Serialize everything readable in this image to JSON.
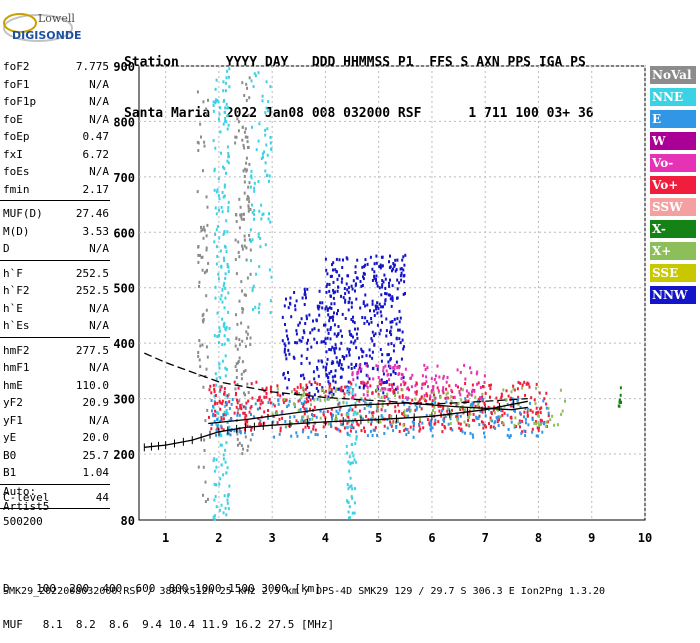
{
  "logo": {
    "brand": "Lowell",
    "product": "DIGISONDE"
  },
  "header": {
    "line1": "Station      YYYY DAY   DDD HHMMSS P1  FFS S AXN PPS IGA PS",
    "line2": "Santa Maria  2022 Jan08 008 032000 RSF      1 711 100 03+ 36"
  },
  "params": [
    {
      "group": 1,
      "items": [
        {
          "name": "foF2",
          "value": "7.775"
        },
        {
          "name": "foF1",
          "value": "N/A"
        },
        {
          "name": "foF1p",
          "value": "N/A"
        },
        {
          "name": "foE",
          "value": "N/A"
        },
        {
          "name": "foEp",
          "value": "0.47"
        },
        {
          "name": "fxI",
          "value": "6.72"
        },
        {
          "name": "foEs",
          "value": "N/A"
        },
        {
          "name": "fmin",
          "value": "2.17"
        }
      ]
    },
    {
      "group": 2,
      "items": [
        {
          "name": "MUF(D)",
          "value": "27.46"
        },
        {
          "name": "M(D)",
          "value": "3.53"
        },
        {
          "name": "D",
          "value": "N/A"
        }
      ]
    },
    {
      "group": 3,
      "items": [
        {
          "name": "h`F",
          "value": "252.5"
        },
        {
          "name": "h`F2",
          "value": "252.5"
        },
        {
          "name": "h`E",
          "value": "N/A"
        },
        {
          "name": "h`Es",
          "value": "N/A"
        }
      ]
    },
    {
      "group": 4,
      "items": [
        {
          "name": "hmF2",
          "value": "277.5"
        },
        {
          "name": "hmF1",
          "value": "N/A"
        },
        {
          "name": "hmE",
          "value": "110.0"
        },
        {
          "name": "yF2",
          "value": "20.9"
        },
        {
          "name": "yF1",
          "value": "N/A"
        },
        {
          "name": "yE",
          "value": "20.0"
        },
        {
          "name": "B0",
          "value": "25.7"
        },
        {
          "name": "B1",
          "value": "1.04"
        }
      ]
    },
    {
      "group": 5,
      "items": [
        {
          "name": "C-level",
          "value": "44"
        }
      ]
    }
  ],
  "auto": {
    "line1": "Auto:",
    "line2": "Artist5",
    "line3": "500200"
  },
  "legend": [
    {
      "label": "NoVal",
      "color": "#8c8c8c"
    },
    {
      "label": "NNE",
      "color": "#3cd2e6"
    },
    {
      "label": "E",
      "color": "#3296e6"
    },
    {
      "label": "W",
      "color": "#aa0096"
    },
    {
      "label": "Vo-",
      "color": "#e632b4"
    },
    {
      "label": "Vo+",
      "color": "#f01e3c"
    },
    {
      "label": "SSW",
      "color": "#f5a0a0"
    },
    {
      "label": "X-",
      "color": "#148214"
    },
    {
      "label": "X+",
      "color": "#8cbe5a"
    },
    {
      "label": "SSE",
      "color": "#c8c800"
    },
    {
      "label": "NNW",
      "color": "#1414c8"
    }
  ],
  "footer": {
    "d_line": "D    100  200  400  600  800 1000 1500 3000 [km]",
    "muf_line": "MUF   8.1  8.2  8.6  9.4 10.4 11.9 16.2 27.5 [MHz]",
    "file_line": "SMK29_2022008032000.RSF / 380fx512h 25 kHz 2.5 km / DPS-4D SMK29 129 / 29.7 S 306.3 E Ion2Png 1.3.20"
  },
  "chart_data": {
    "type": "scatter",
    "title": "",
    "xlabel": "",
    "ylabel": "",
    "x_ticks": [
      "1",
      "2",
      "3",
      "4",
      "5",
      "6",
      "7",
      "8",
      "9",
      "10"
    ],
    "y_ticks": [
      "80",
      "200",
      "300",
      "400",
      "500",
      "600",
      "700",
      "800",
      "900"
    ],
    "xlim": [
      0.5,
      10
    ],
    "ylim": [
      80,
      900
    ],
    "grid": true,
    "legend_position": "right",
    "clusters": [
      {
        "source": "NNE",
        "x": [
          1.9,
          2.2
        ],
        "y": [
          80,
          900
        ],
        "density": 220
      },
      {
        "source": "NoVal",
        "x": [
          2.3,
          2.6
        ],
        "y": [
          200,
          880
        ],
        "density": 140
      },
      {
        "source": "NNE",
        "x": [
          2.6,
          3.0
        ],
        "y": [
          450,
          900
        ],
        "density": 80
      },
      {
        "source": "NNW",
        "x": [
          3.2,
          4.2
        ],
        "y": [
          300,
          500
        ],
        "density": 150
      },
      {
        "source": "NNW",
        "x": [
          4.0,
          5.5
        ],
        "y": [
          310,
          560
        ],
        "density": 380
      },
      {
        "source": "Vo+",
        "x": [
          1.8,
          8.2
        ],
        "y": [
          240,
          330
        ],
        "density": 520
      },
      {
        "source": "E",
        "x": [
          1.8,
          8.2
        ],
        "y": [
          230,
          300
        ],
        "density": 260
      },
      {
        "source": "X+",
        "x": [
          3.0,
          8.5
        ],
        "y": [
          250,
          320
        ],
        "density": 160
      },
      {
        "source": "Vo-",
        "x": [
          4.5,
          7.0
        ],
        "y": [
          300,
          360
        ],
        "density": 120
      },
      {
        "source": "NNE",
        "x": [
          4.4,
          4.6
        ],
        "y": [
          80,
          330
        ],
        "density": 60
      },
      {
        "source": "NoVal",
        "x": [
          1.6,
          1.8
        ],
        "y": [
          80,
          860
        ],
        "density": 70
      },
      {
        "source": "X-",
        "x": [
          9.5,
          9.55
        ],
        "y": [
          285,
          320
        ],
        "density": 10
      }
    ],
    "curves": [
      {
        "name": "trace_dashed",
        "style": "dashed",
        "x": [
          0.6,
          1.0,
          2.0,
          3.0,
          4.0,
          5.0,
          6.0,
          7.0,
          7.8
        ],
        "y": [
          382,
          365,
          330,
          312,
          302,
          296,
          290,
          295,
          300
        ]
      },
      {
        "name": "trace_solid_upper",
        "style": "solid",
        "x": [
          1.8,
          2.5,
          3.5,
          4.5,
          5.5,
          6.5,
          7.5,
          7.8
        ],
        "y": [
          255,
          262,
          275,
          288,
          292,
          285,
          280,
          284
        ]
      },
      {
        "name": "trace_ticked",
        "style": "ticked",
        "x": [
          0.6,
          1.0,
          1.5,
          2.0,
          2.5,
          3.0,
          4.0,
          5.0,
          6.0,
          7.0,
          7.8
        ],
        "y": [
          212,
          216,
          225,
          240,
          248,
          252,
          258,
          262,
          268,
          280,
          295
        ]
      }
    ]
  }
}
